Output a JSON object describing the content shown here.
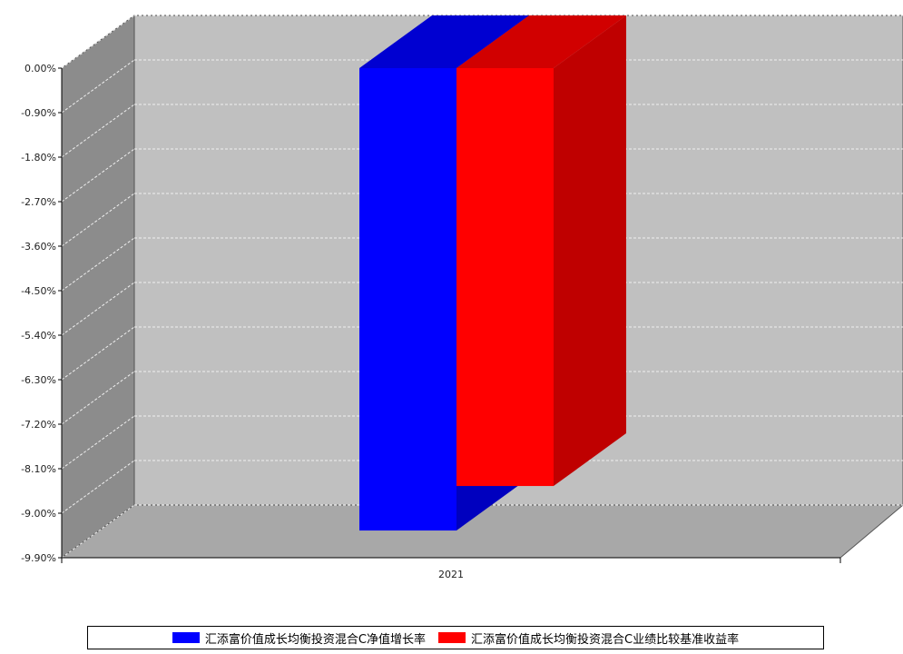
{
  "chart_data": {
    "type": "bar",
    "categories": [
      "2021"
    ],
    "series": [
      {
        "name": "汇添富价值成长均衡投资混合C净值增长率",
        "values": [
          -9.35
        ],
        "color": "#0000ff"
      },
      {
        "name": "汇添富价值成长均衡投资混合C业绩比较基准收益率",
        "values": [
          -8.45
        ],
        "color": "#ff0000"
      }
    ],
    "ylim": [
      -9.9,
      0.0
    ],
    "yticks": [
      "0.00%",
      "-0.90%",
      "-1.80%",
      "-2.70%",
      "-3.60%",
      "-4.50%",
      "-5.40%",
      "-6.30%",
      "-7.20%",
      "-8.10%",
      "-9.00%",
      "-9.90%"
    ],
    "grid": true,
    "three_d": true,
    "legend_position": "bottom"
  }
}
